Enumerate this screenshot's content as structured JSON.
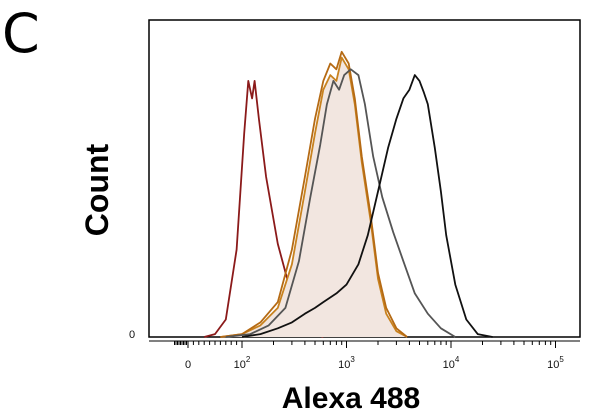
{
  "panel_letter": "C",
  "chart_data": {
    "type": "area",
    "xlabel": "Alexa 488",
    "ylabel": "Count",
    "x_scale": "biexponential",
    "xlim": [
      -100,
      100000
    ],
    "ylim": [
      0,
      100
    ],
    "y_ticks": [
      {
        "value": 0,
        "label": "0"
      }
    ],
    "x_ticks": [
      {
        "value": 0,
        "label": "0"
      },
      {
        "value": 100,
        "base": "10",
        "exp": "2"
      },
      {
        "value": 1000,
        "base": "10",
        "exp": "3"
      },
      {
        "value": 10000,
        "base": "10",
        "exp": "4"
      },
      {
        "value": 100000,
        "base": "10",
        "exp": "5"
      }
    ],
    "grid": false,
    "legend": "none",
    "series": [
      {
        "color": "#8b1a1a",
        "fill": "none",
        "points": [
          [
            30,
            0
          ],
          [
            50,
            1
          ],
          [
            70,
            6
          ],
          [
            90,
            30
          ],
          [
            105,
            70
          ],
          [
            115,
            88
          ],
          [
            125,
            82
          ],
          [
            132,
            88
          ],
          [
            145,
            75
          ],
          [
            170,
            55
          ],
          [
            220,
            32
          ],
          [
            290,
            16
          ],
          [
            360,
            6
          ],
          [
            450,
            2
          ],
          [
            600,
            0
          ]
        ]
      },
      {
        "color": "#c8821f",
        "fill": "#f2e6e0",
        "points": [
          [
            60,
            0
          ],
          [
            100,
            1
          ],
          [
            150,
            4
          ],
          [
            220,
            10
          ],
          [
            300,
            25
          ],
          [
            400,
            50
          ],
          [
            500,
            70
          ],
          [
            600,
            85
          ],
          [
            700,
            90
          ],
          [
            800,
            88
          ],
          [
            900,
            96
          ],
          [
            1050,
            92
          ],
          [
            1200,
            80
          ],
          [
            1400,
            60
          ],
          [
            1700,
            40
          ],
          [
            2000,
            20
          ],
          [
            2400,
            8
          ],
          [
            3000,
            2
          ],
          [
            3800,
            0
          ]
        ]
      },
      {
        "color": "#b56a14",
        "fill": "none",
        "points": [
          [
            60,
            0
          ],
          [
            100,
            1
          ],
          [
            150,
            5
          ],
          [
            220,
            12
          ],
          [
            300,
            30
          ],
          [
            400,
            55
          ],
          [
            500,
            75
          ],
          [
            600,
            88
          ],
          [
            700,
            94
          ],
          [
            800,
            92
          ],
          [
            900,
            98
          ],
          [
            1050,
            94
          ],
          [
            1200,
            82
          ],
          [
            1400,
            62
          ],
          [
            1700,
            42
          ],
          [
            2000,
            22
          ],
          [
            2400,
            10
          ],
          [
            3000,
            3
          ],
          [
            3800,
            0
          ]
        ]
      },
      {
        "color": "#555555",
        "fill": "none",
        "points": [
          [
            70,
            0
          ],
          [
            120,
            1
          ],
          [
            180,
            4
          ],
          [
            260,
            10
          ],
          [
            350,
            26
          ],
          [
            450,
            48
          ],
          [
            560,
            66
          ],
          [
            650,
            80
          ],
          [
            750,
            88
          ],
          [
            850,
            85
          ],
          [
            950,
            90
          ],
          [
            1100,
            92
          ],
          [
            1300,
            90
          ],
          [
            1500,
            80
          ],
          [
            1800,
            62
          ],
          [
            2200,
            48
          ],
          [
            2800,
            36
          ],
          [
            3500,
            26
          ],
          [
            4500,
            15
          ],
          [
            6000,
            8
          ],
          [
            8000,
            3
          ],
          [
            11000,
            0
          ]
        ]
      },
      {
        "color": "#111111",
        "fill": "none",
        "points": [
          [
            100,
            0
          ],
          [
            150,
            1
          ],
          [
            220,
            3
          ],
          [
            300,
            5
          ],
          [
            400,
            8
          ],
          [
            500,
            10
          ],
          [
            600,
            12
          ],
          [
            800,
            15
          ],
          [
            1000,
            18
          ],
          [
            1300,
            25
          ],
          [
            1600,
            35
          ],
          [
            2000,
            50
          ],
          [
            2500,
            65
          ],
          [
            3000,
            75
          ],
          [
            3500,
            82
          ],
          [
            4000,
            85
          ],
          [
            4500,
            90
          ],
          [
            5000,
            88
          ],
          [
            5500,
            84
          ],
          [
            6000,
            80
          ],
          [
            7000,
            65
          ],
          [
            8000,
            50
          ],
          [
            9000,
            35
          ],
          [
            11000,
            18
          ],
          [
            14000,
            6
          ],
          [
            18000,
            1
          ],
          [
            25000,
            0
          ]
        ]
      }
    ]
  }
}
